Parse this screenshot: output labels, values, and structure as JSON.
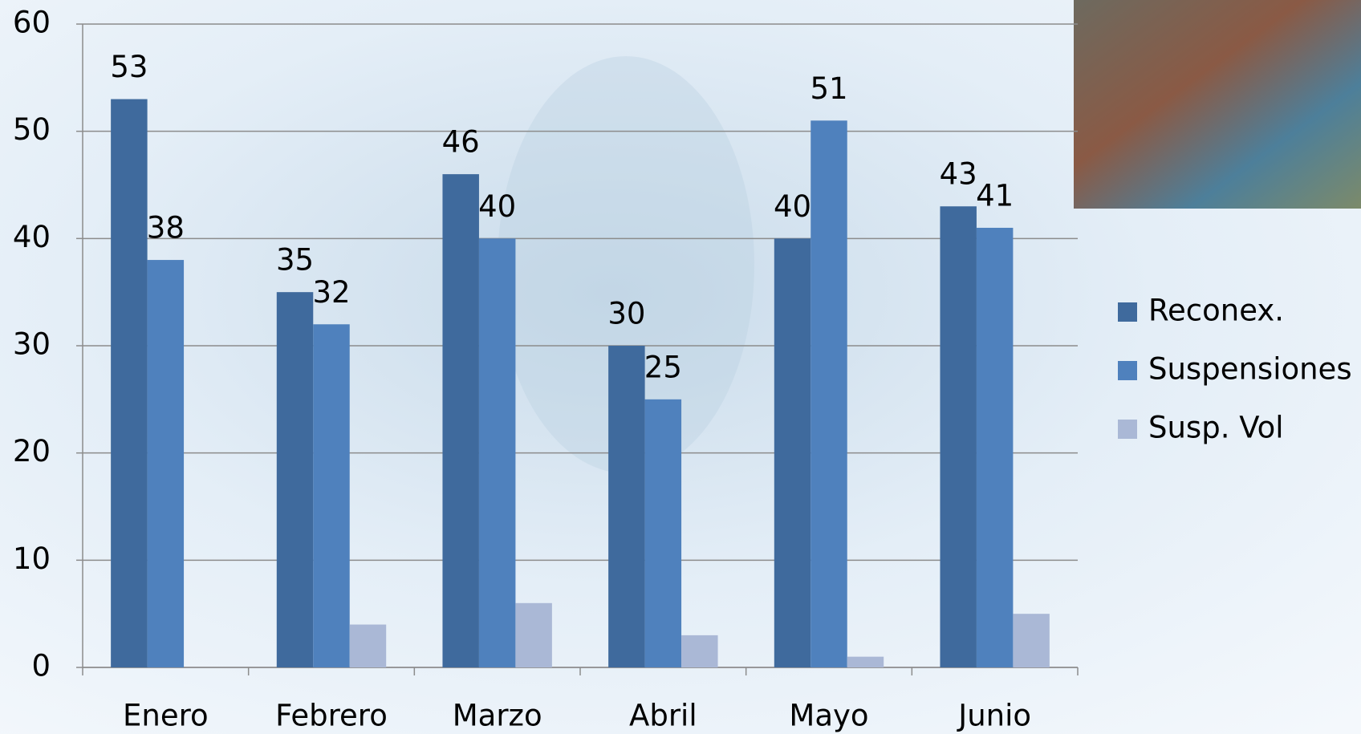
{
  "chart_data": {
    "type": "bar",
    "categories": [
      "Enero",
      "Febrero",
      "Marzo",
      "Abril",
      "Mayo",
      "Junio"
    ],
    "series": [
      {
        "name": "Reconex.",
        "color": "#3f6a9d",
        "values": [
          53,
          35,
          46,
          30,
          40,
          43
        ],
        "data_labels": true
      },
      {
        "name": "Suspensiones",
        "color": "#4f81bd",
        "values": [
          38,
          32,
          40,
          25,
          51,
          41
        ],
        "data_labels": true
      },
      {
        "name": "Susp. Vol",
        "color": "#aab8d6",
        "values": [
          0,
          4,
          6,
          3,
          1,
          5
        ],
        "data_labels": false
      }
    ],
    "ylim": [
      0,
      60
    ],
    "yticks": [
      0,
      10,
      20,
      30,
      40,
      50,
      60
    ],
    "grid": true,
    "legend": "right"
  }
}
